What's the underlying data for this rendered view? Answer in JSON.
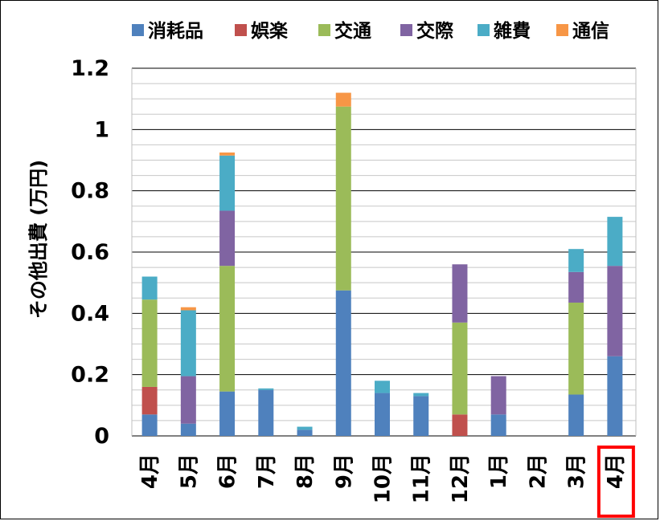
{
  "chart_data": {
    "type": "bar",
    "stacked": true,
    "categories": [
      "4月",
      "5月",
      "6月",
      "7月",
      "8月",
      "9月",
      "10月",
      "11月",
      "12月",
      "1月",
      "2月",
      "3月",
      "4月"
    ],
    "series": [
      {
        "name": "消耗品",
        "color": "#4F81BD",
        "values": [
          0.07,
          0.04,
          0.145,
          0.15,
          0.02,
          0.475,
          0.14,
          0.13,
          0,
          0.07,
          0,
          0.135,
          0.26
        ]
      },
      {
        "name": "娯楽",
        "color": "#C0504D",
        "values": [
          0.09,
          0,
          0,
          0,
          0,
          0,
          0,
          0,
          0.07,
          0,
          0,
          0,
          0
        ]
      },
      {
        "name": "交通",
        "color": "#9BBB59",
        "values": [
          0.285,
          0,
          0.41,
          0,
          0,
          0.6,
          0,
          0,
          0.3,
          0,
          0,
          0.3,
          0
        ]
      },
      {
        "name": "交際",
        "color": "#8064A2",
        "values": [
          0,
          0.155,
          0.18,
          0,
          0,
          0,
          0,
          0,
          0.19,
          0.125,
          0,
          0.1,
          0.295
        ]
      },
      {
        "name": "雑費",
        "color": "#4BACC6",
        "values": [
          0.075,
          0.215,
          0.18,
          0.005,
          0.01,
          0,
          0.04,
          0.01,
          0,
          0,
          0,
          0.075,
          0.16
        ]
      },
      {
        "name": "通信",
        "color": "#F79646",
        "values": [
          0,
          0.01,
          0.01,
          0,
          0,
          0.045,
          0,
          0,
          0,
          0,
          0,
          0,
          0
        ]
      }
    ],
    "ylabel": "その他出費 (万円)",
    "xlabel": "",
    "ylim": [
      0,
      1.2
    ],
    "yticks": [
      "0",
      "0.2",
      "0.4",
      "0.6",
      "0.8",
      "1",
      "1.2"
    ],
    "grid": true,
    "legend_position": "top",
    "highlight_category_index": 12,
    "highlight_color": "#FF0000"
  }
}
